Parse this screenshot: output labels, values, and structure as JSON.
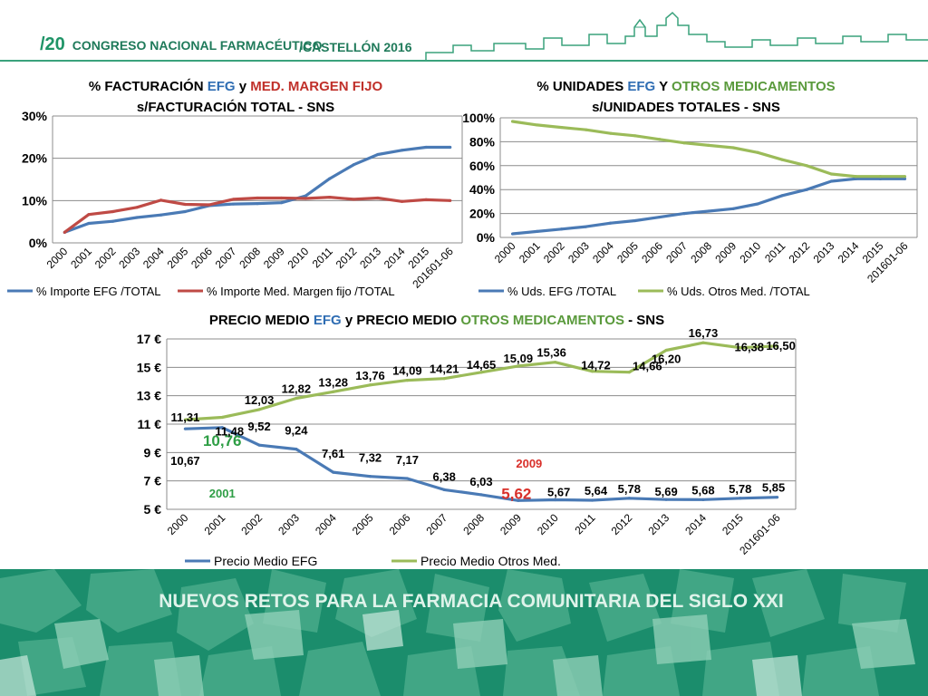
{
  "header": {
    "edition": "/20",
    "congress": "CONGRESO NACIONAL FARMACÉUTICO",
    "city": "/CASTELLÓN 2016"
  },
  "footer": {
    "title": "NUEVOS RETOS PARA LA FARMACIA COMUNITARIA DEL SIGLO XXI"
  },
  "colors": {
    "blue": "#4a7ab5",
    "red": "#bf4a45",
    "green": "#9bbb59",
    "efg_title": "#2f6db3",
    "red_title": "#c0302a",
    "green_title": "#5a9a3c",
    "footer": "#1b8d6c"
  },
  "chart_data": [
    {
      "type": "line",
      "title_parts": [
        "% FACTURACIÓN ",
        "EFG",
        " y ",
        "MED. MARGEN FIJO"
      ],
      "title_line2": "s/FACTURACIÓN TOTAL - SNS",
      "categories": [
        "2000",
        "2001",
        "2002",
        "2003",
        "2004",
        "2005",
        "2006",
        "2007",
        "2008",
        "2009",
        "2010",
        "2011",
        "2012",
        "2013",
        "2014",
        "2015",
        "201601-06"
      ],
      "ylim": [
        0,
        30
      ],
      "yticks": [
        "0%",
        "10%",
        "20%",
        "30%"
      ],
      "grid": true,
      "legend": "bottom",
      "series": [
        {
          "name": "% Importe EFG /TOTAL",
          "values": [
            2.5,
            4.6,
            5.1,
            6.0,
            6.6,
            7.4,
            8.8,
            9.2,
            9.3,
            9.5,
            11.1,
            15.2,
            18.5,
            20.9,
            21.9,
            22.6,
            22.6
          ]
        },
        {
          "name": "% Importe Med. Margen fijo /TOTAL",
          "values": [
            2.5,
            6.7,
            7.4,
            8.4,
            10.1,
            9.1,
            9.0,
            10.3,
            10.6,
            10.6,
            10.5,
            10.8,
            10.3,
            10.6,
            9.8,
            10.2,
            10.0
          ]
        }
      ]
    },
    {
      "type": "line",
      "title_parts": [
        "% UNIDADES ",
        "EFG",
        " Y ",
        "OTROS MEDICAMENTOS"
      ],
      "title_line2": "s/UNIDADES TOTALES - SNS",
      "categories": [
        "2000",
        "2001",
        "2002",
        "2003",
        "2004",
        "2005",
        "2006",
        "2007",
        "2008",
        "2009",
        "2010",
        "2011",
        "2012",
        "2013",
        "2014",
        "2015",
        "201601-06"
      ],
      "ylim": [
        0,
        100
      ],
      "yticks": [
        "0%",
        "20%",
        "40%",
        "60%",
        "80%",
        "100%"
      ],
      "grid": true,
      "legend": "bottom",
      "series": [
        {
          "name": "% Uds. EFG /TOTAL",
          "values": [
            3,
            5,
            7,
            9,
            12,
            14,
            17,
            20,
            22,
            24,
            28,
            35,
            40,
            47,
            49,
            49,
            49
          ]
        },
        {
          "name": "% Uds. Otros Med. /TOTAL",
          "values": [
            97,
            94,
            92,
            90,
            87,
            85,
            82,
            79,
            77,
            75,
            71,
            65,
            60,
            53,
            51,
            51,
            51
          ]
        }
      ]
    },
    {
      "type": "line",
      "title_parts": [
        "PRECIO MEDIO ",
        "EFG",
        " y PRECIO MEDIO ",
        "OTROS MEDICAMENTOS",
        " - SNS"
      ],
      "categories": [
        "2000",
        "2001",
        "2002",
        "2003",
        "2004",
        "2005",
        "2006",
        "2007",
        "2008",
        "2009",
        "2010",
        "2011",
        "2012",
        "2013",
        "2014",
        "2015",
        "201601-06"
      ],
      "ylim": [
        5,
        17
      ],
      "yticks": [
        "5 €",
        "7 €",
        "9 €",
        "11 €",
        "13 €",
        "15 €",
        "17 €"
      ],
      "grid": true,
      "legend": "bottom",
      "series": [
        {
          "name": "Precio Medio EFG",
          "values": [
            10.67,
            10.76,
            9.52,
            9.24,
            7.61,
            7.32,
            7.17,
            6.38,
            6.03,
            5.62,
            5.67,
            5.64,
            5.78,
            5.69,
            5.68,
            5.78,
            5.85
          ],
          "labels": [
            "10,67",
            "10,76",
            "9,52",
            "9,24",
            "7,61",
            "7,32",
            "7,17",
            "6,38",
            "6,03",
            "5,62",
            "5,67",
            "5,64",
            "5,78",
            "5,69",
            "5,68",
            "5,78",
            "5,85"
          ]
        },
        {
          "name": "Precio Medio Otros Med.",
          "values": [
            11.31,
            11.48,
            12.03,
            12.82,
            13.28,
            13.76,
            14.09,
            14.21,
            14.65,
            15.09,
            15.36,
            14.72,
            14.66,
            16.2,
            16.73,
            16.38,
            16.5
          ],
          "labels": [
            "11,31",
            "11,48",
            "12,03",
            "12,82",
            "13,28",
            "13,76",
            "14,09",
            "14,21",
            "14,65",
            "15,09",
            "15,36",
            "14,72",
            "14,66",
            "16,20",
            "16,73",
            "16,38",
            "16,50"
          ]
        }
      ],
      "annotations": [
        {
          "text": "2001",
          "color": "#2e9e45"
        },
        {
          "text": "2009",
          "color": "#d9302a"
        }
      ]
    }
  ]
}
